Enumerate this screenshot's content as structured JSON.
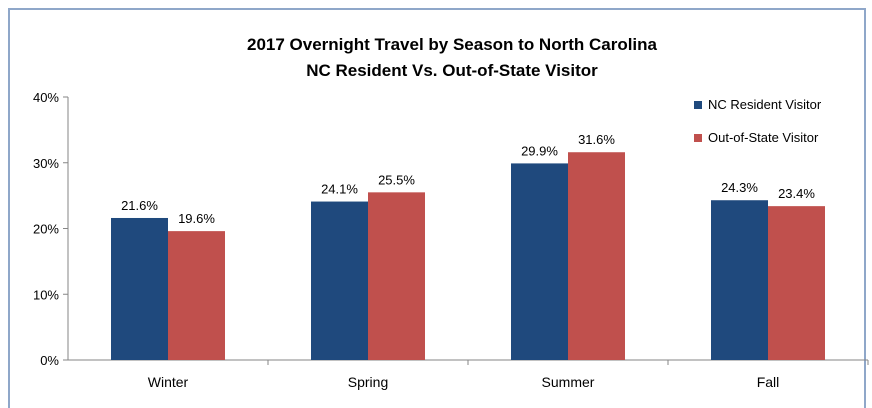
{
  "chart_data": {
    "type": "bar",
    "title": "2017 Overnight Travel by Season to North Carolina",
    "subtitle": "NC Resident Vs. Out-of-State Visitor",
    "categories": [
      "Winter",
      "Spring",
      "Summer",
      "Fall"
    ],
    "series": [
      {
        "name": "NC Resident Visitor",
        "color": "#1f497d",
        "values": [
          21.6,
          24.1,
          29.9,
          24.3
        ],
        "labels": [
          "21.6%",
          "24.1%",
          "29.9%",
          "24.3%"
        ]
      },
      {
        "name": "Out-of-State Visitor",
        "color": "#c0504d",
        "values": [
          19.6,
          25.5,
          31.6,
          23.4
        ],
        "labels": [
          "19.6%",
          "25.5%",
          "31.6%",
          "23.4%"
        ]
      }
    ],
    "ylim": [
      0,
      40
    ],
    "yticks": [
      "0%",
      "10%",
      "20%",
      "30%",
      "40%"
    ],
    "xlabel": "",
    "ylabel": "",
    "grid": false,
    "legend": "top-right"
  }
}
